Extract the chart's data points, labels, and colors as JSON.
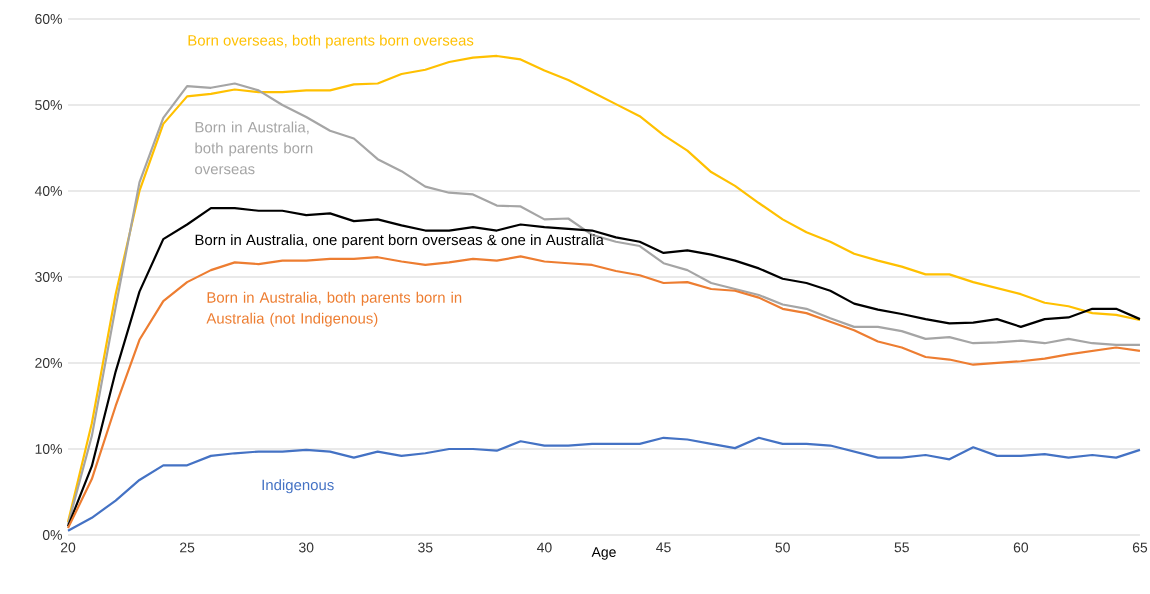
{
  "chart_data": {
    "type": "line",
    "xlabel": "Age",
    "x": [
      20,
      21,
      22,
      23,
      24,
      25,
      26,
      27,
      28,
      29,
      30,
      31,
      32,
      33,
      34,
      35,
      36,
      37,
      38,
      39,
      40,
      41,
      42,
      43,
      44,
      45,
      46,
      47,
      48,
      49,
      50,
      51,
      52,
      53,
      54,
      55,
      56,
      57,
      58,
      59,
      60,
      61,
      62,
      63,
      64,
      65
    ],
    "series": [
      {
        "name": "Born overseas, both parents born overseas",
        "color": "#ffc000",
        "values": [
          1.5,
          13,
          28,
          40,
          47.8,
          51,
          51.3,
          51.8,
          51.5,
          51.5,
          51.7,
          51.7,
          52.4,
          52.5,
          53.6,
          54.1,
          55,
          55.5,
          55.7,
          55.3,
          54,
          52.9,
          51.5,
          50.1,
          48.7,
          46.5,
          44.7,
          42.2,
          40.6,
          38.6,
          36.7,
          35.2,
          34.1,
          32.7,
          31.9,
          31.2,
          30.3,
          30.3,
          29.4,
          28.7,
          28,
          27,
          26.6,
          25.8,
          25.6,
          25
        ]
      },
      {
        "name": "Born in Australia, both parents born overseas",
        "color": "#a5a5a5",
        "values": [
          1.2,
          11.5,
          26.5,
          41,
          48.5,
          52.2,
          52,
          52.5,
          51.7,
          50,
          48.6,
          47,
          46.1,
          43.7,
          42.3,
          40.5,
          39.8,
          39.6,
          38.3,
          38.2,
          36.7,
          36.8,
          34.9,
          34.1,
          33.6,
          31.6,
          30.8,
          29.3,
          28.6,
          27.9,
          26.8,
          26.3,
          25.2,
          24.2,
          24.2,
          23.7,
          22.8,
          23,
          22.3,
          22.4,
          22.6,
          22.3,
          22.8,
          22.3,
          22.1,
          22.1
        ]
      },
      {
        "name": "Born in Australia, one parent born overseas & one in Australia",
        "color": "#000000",
        "values": [
          1,
          8,
          19,
          28.3,
          34.4,
          36.1,
          38,
          38,
          37.7,
          37.7,
          37.2,
          37.4,
          36.5,
          36.7,
          36,
          35.4,
          35.4,
          35.8,
          35.4,
          36.1,
          35.8,
          35.6,
          35.4,
          34.6,
          34.1,
          32.8,
          33.1,
          32.6,
          31.9,
          31,
          29.8,
          29.3,
          28.4,
          26.9,
          26.2,
          25.7,
          25.1,
          24.6,
          24.7,
          25.1,
          24.2,
          25.1,
          25.3,
          26.3,
          26.3,
          25.1
        ]
      },
      {
        "name": "Born in Australia, both parents born in Australia (not Indigenous)",
        "color": "#ed7d31",
        "values": [
          0.8,
          6.5,
          15,
          22.7,
          27.2,
          29.4,
          30.8,
          31.7,
          31.5,
          31.9,
          31.9,
          32.1,
          32.1,
          32.3,
          31.8,
          31.4,
          31.7,
          32.1,
          31.9,
          32.4,
          31.8,
          31.6,
          31.4,
          30.7,
          30.2,
          29.3,
          29.4,
          28.6,
          28.4,
          27.6,
          26.3,
          25.8,
          24.8,
          23.8,
          22.5,
          21.8,
          20.7,
          20.4,
          19.8,
          20,
          20.2,
          20.5,
          21,
          21.4,
          21.8,
          21.4
        ]
      },
      {
        "name": "Indigenous",
        "color": "#4472c4",
        "values": [
          0.5,
          2,
          4,
          6.4,
          8.1,
          8.1,
          9.2,
          9.5,
          9.7,
          9.7,
          9.9,
          9.7,
          9,
          9.7,
          9.2,
          9.5,
          10,
          10,
          9.8,
          10.9,
          10.4,
          10.4,
          10.6,
          10.6,
          10.6,
          11.3,
          11.1,
          10.6,
          10.1,
          11.3,
          10.6,
          10.6,
          10.4,
          9.7,
          9,
          9,
          9.3,
          8.8,
          10.2,
          9.2,
          9.2,
          9.4,
          9,
          9.3,
          9,
          9.9
        ]
      }
    ],
    "xlim": [
      20,
      65
    ],
    "xticks": [
      20,
      25,
      30,
      35,
      40,
      45,
      50,
      55,
      60,
      65
    ],
    "ylim": [
      0,
      60
    ],
    "yticks": [
      {
        "value": 0,
        "label": "0%"
      },
      {
        "value": 10,
        "label": "10%"
      },
      {
        "value": 20,
        "label": "20%"
      },
      {
        "value": 30,
        "label": "30%"
      },
      {
        "value": 40,
        "label": "40%"
      },
      {
        "value": 50,
        "label": "50%"
      },
      {
        "value": 60,
        "label": "60%"
      }
    ],
    "grid": "y",
    "legend": false,
    "marker": "none",
    "line_style": "solid"
  }
}
